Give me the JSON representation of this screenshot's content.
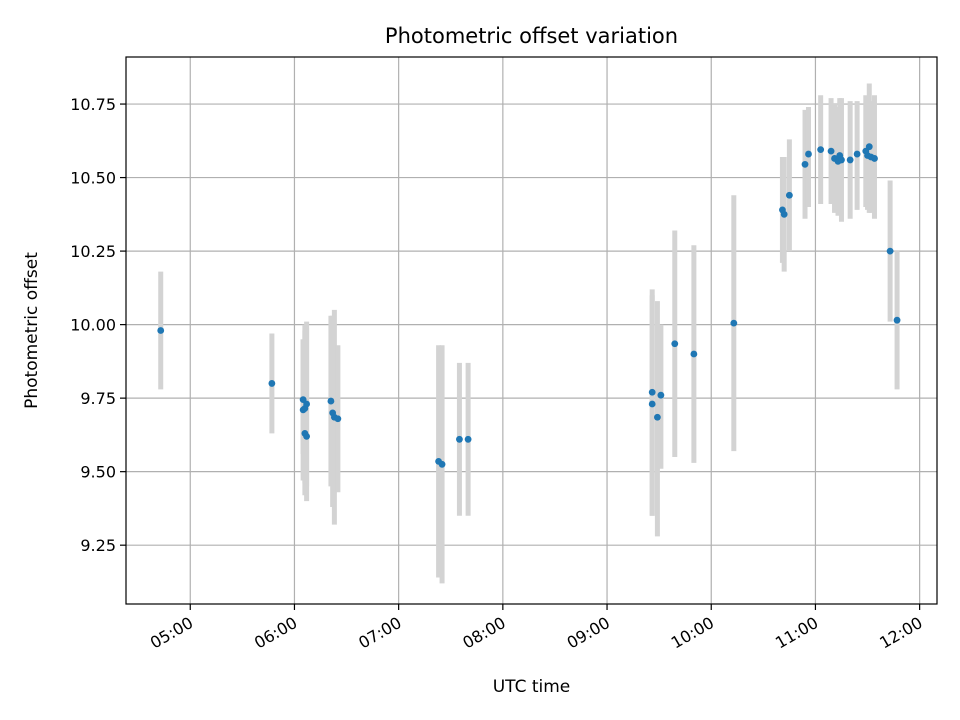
{
  "chart_data": {
    "type": "scatter",
    "title": "Photometric offset variation",
    "xlabel": "UTC time",
    "ylabel": "Photometric offset",
    "xlim": [
      "04:23",
      "12:10"
    ],
    "ylim": [
      9.05,
      10.91
    ],
    "grid": true,
    "x_ticks": [
      "05:00",
      "06:00",
      "07:00",
      "08:00",
      "09:00",
      "10:00",
      "11:00",
      "12:00"
    ],
    "y_ticks": [
      9.25,
      9.5,
      9.75,
      10.0,
      10.25,
      10.5,
      10.75
    ],
    "y_tick_labels": [
      "9.25",
      "9.50",
      "9.75",
      "10.00",
      "10.25",
      "10.50",
      "10.75"
    ],
    "colors": {
      "point": "#1f77b4",
      "error_bar": "#d3d3d3"
    },
    "series": [
      {
        "points": [
          {
            "t": "04:43",
            "y": 9.98,
            "lo": 9.78,
            "hi": 10.18
          },
          {
            "t": "05:47",
            "y": 9.8,
            "lo": 9.63,
            "hi": 9.97
          },
          {
            "t": "06:05",
            "y": 9.745,
            "lo": 9.56,
            "hi": 9.95
          },
          {
            "t": "06:05",
            "y": 9.71,
            "lo": 9.47,
            "hi": 9.95
          },
          {
            "t": "06:06",
            "y": 9.63,
            "lo": 9.46,
            "hi": 9.98
          },
          {
            "t": "06:06",
            "y": 9.715,
            "lo": 9.42,
            "hi": 10.0
          },
          {
            "t": "06:07",
            "y": 9.62,
            "lo": 9.4,
            "hi": 10.01
          },
          {
            "t": "06:07",
            "y": 9.73,
            "lo": 9.45,
            "hi": 9.99
          },
          {
            "t": "06:21",
            "y": 9.74,
            "lo": 9.45,
            "hi": 10.03
          },
          {
            "t": "06:22",
            "y": 9.7,
            "lo": 9.38,
            "hi": 10.03
          },
          {
            "t": "06:23",
            "y": 9.685,
            "lo": 9.32,
            "hi": 10.05
          },
          {
            "t": "06:25",
            "y": 9.68,
            "lo": 9.43,
            "hi": 9.93
          },
          {
            "t": "07:23",
            "y": 9.535,
            "lo": 9.14,
            "hi": 9.93
          },
          {
            "t": "07:25",
            "y": 9.525,
            "lo": 9.12,
            "hi": 9.93
          },
          {
            "t": "07:35",
            "y": 9.61,
            "lo": 9.35,
            "hi": 9.87
          },
          {
            "t": "07:40",
            "y": 9.61,
            "lo": 9.35,
            "hi": 9.87
          },
          {
            "t": "09:26",
            "y": 9.77,
            "lo": 9.35,
            "hi": 10.12
          },
          {
            "t": "09:26",
            "y": 9.73,
            "lo": 9.35,
            "hi": 10.1
          },
          {
            "t": "09:29",
            "y": 9.685,
            "lo": 9.28,
            "hi": 10.08
          },
          {
            "t": "09:31",
            "y": 9.76,
            "lo": 9.51,
            "hi": 10.0
          },
          {
            "t": "09:39",
            "y": 9.935,
            "lo": 9.55,
            "hi": 10.32
          },
          {
            "t": "09:50",
            "y": 9.9,
            "lo": 9.53,
            "hi": 10.27
          },
          {
            "t": "10:13",
            "y": 10.005,
            "lo": 9.57,
            "hi": 10.44
          },
          {
            "t": "10:41",
            "y": 10.39,
            "lo": 10.21,
            "hi": 10.57
          },
          {
            "t": "10:42",
            "y": 10.375,
            "lo": 10.18,
            "hi": 10.57
          },
          {
            "t": "10:45",
            "y": 10.44,
            "lo": 10.25,
            "hi": 10.63
          },
          {
            "t": "10:54",
            "y": 10.545,
            "lo": 10.36,
            "hi": 10.73
          },
          {
            "t": "10:56",
            "y": 10.58,
            "lo": 10.4,
            "hi": 10.74
          },
          {
            "t": "11:03",
            "y": 10.595,
            "lo": 10.41,
            "hi": 10.78
          },
          {
            "t": "11:09",
            "y": 10.59,
            "lo": 10.41,
            "hi": 10.77
          },
          {
            "t": "11:11",
            "y": 10.565,
            "lo": 10.38,
            "hi": 10.75
          },
          {
            "t": "11:13",
            "y": 10.555,
            "lo": 10.37,
            "hi": 10.74
          },
          {
            "t": "11:14",
            "y": 10.575,
            "lo": 10.38,
            "hi": 10.77
          },
          {
            "t": "11:15",
            "y": 10.56,
            "lo": 10.35,
            "hi": 10.77
          },
          {
            "t": "11:20",
            "y": 10.56,
            "lo": 10.36,
            "hi": 10.76
          },
          {
            "t": "11:24",
            "y": 10.58,
            "lo": 10.39,
            "hi": 10.76
          },
          {
            "t": "11:29",
            "y": 10.59,
            "lo": 10.4,
            "hi": 10.78
          },
          {
            "t": "11:30",
            "y": 10.575,
            "lo": 10.39,
            "hi": 10.77
          },
          {
            "t": "11:31",
            "y": 10.605,
            "lo": 10.38,
            "hi": 10.82
          },
          {
            "t": "11:32",
            "y": 10.57,
            "lo": 10.38,
            "hi": 10.76
          },
          {
            "t": "11:34",
            "y": 10.565,
            "lo": 10.36,
            "hi": 10.78
          },
          {
            "t": "11:43",
            "y": 10.25,
            "lo": 10.01,
            "hi": 10.49
          },
          {
            "t": "11:47",
            "y": 10.015,
            "lo": 9.78,
            "hi": 10.25
          }
        ]
      }
    ]
  }
}
